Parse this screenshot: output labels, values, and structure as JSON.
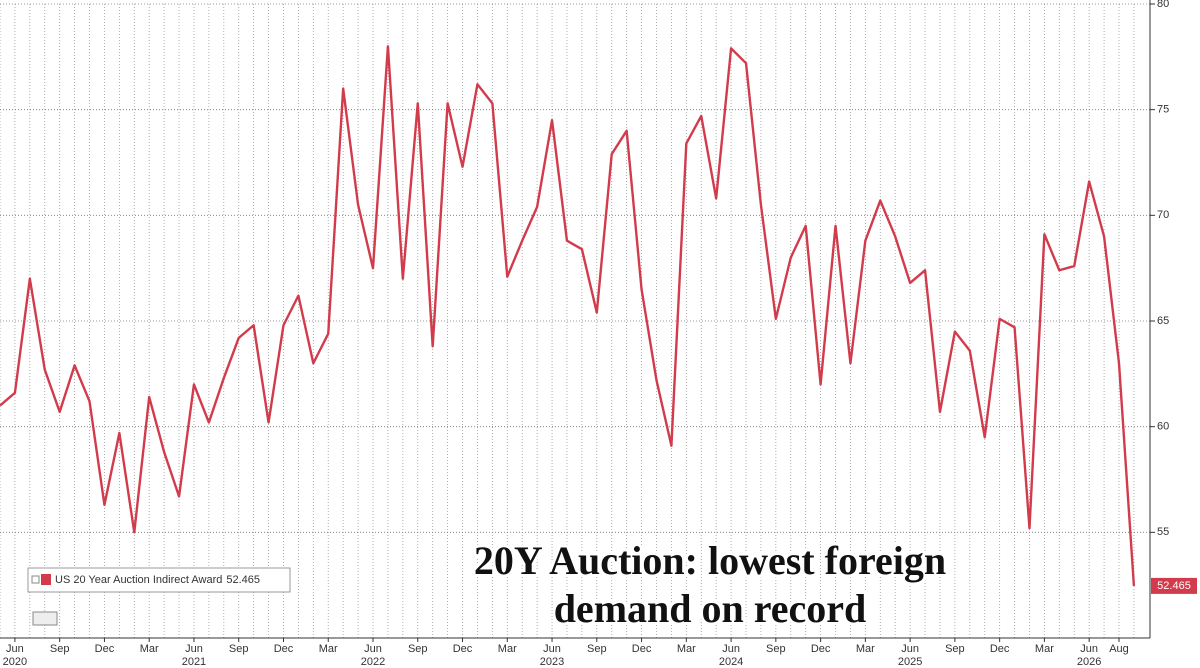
{
  "chart_data": {
    "type": "line",
    "annotation": [
      "20Y Auction: lowest foreign",
      "demand on record"
    ],
    "x": [
      "2020-05",
      "2020-06",
      "2020-07",
      "2020-08",
      "2020-09",
      "2020-10",
      "2020-11",
      "2020-12",
      "2021-01",
      "2021-02",
      "2021-03",
      "2021-04",
      "2021-05",
      "2021-06",
      "2021-07",
      "2021-08",
      "2021-09",
      "2021-10",
      "2021-11",
      "2021-12",
      "2022-01",
      "2022-02",
      "2022-03",
      "2022-04",
      "2022-05",
      "2022-06",
      "2022-07",
      "2022-08",
      "2022-09",
      "2022-10",
      "2022-11",
      "2022-12",
      "2023-01",
      "2023-02",
      "2023-03",
      "2023-04",
      "2023-05",
      "2023-06",
      "2023-07",
      "2023-08",
      "2023-09",
      "2023-10",
      "2023-11",
      "2023-12",
      "2024-01",
      "2024-02",
      "2024-03",
      "2024-04",
      "2024-05",
      "2024-06",
      "2024-07",
      "2024-08",
      "2024-09",
      "2024-10",
      "2024-11",
      "2024-12",
      "2025-01",
      "2025-02",
      "2025-03",
      "2025-04",
      "2025-05",
      "2025-06",
      "2025-07",
      "2025-08",
      "2025-09",
      "2025-10",
      "2025-11",
      "2025-12",
      "2026-01",
      "2026-02",
      "2026-03",
      "2026-04",
      "2026-05",
      "2026-06",
      "2026-07",
      "2026-08",
      "2026-09"
    ],
    "series": [
      {
        "name": "US 20 Year Auction Indirect Award",
        "color": "#d23b4b",
        "values": [
          61.0,
          61.6,
          67.0,
          62.7,
          60.7,
          62.9,
          61.2,
          56.3,
          59.7,
          55.0,
          61.4,
          58.8,
          56.7,
          62.0,
          60.2,
          62.3,
          64.2,
          64.8,
          60.2,
          64.8,
          66.2,
          63.0,
          64.4,
          76.0,
          70.5,
          67.5,
          78.0,
          67.0,
          75.3,
          63.8,
          75.3,
          72.3,
          76.2,
          75.3,
          67.1,
          68.8,
          70.4,
          74.5,
          68.8,
          68.4,
          65.4,
          72.9,
          74.0,
          66.5,
          62.2,
          59.1,
          73.4,
          74.7,
          70.8,
          77.9,
          77.2,
          70.5,
          65.1,
          68.0,
          69.5,
          62.0,
          69.5,
          63.0,
          68.8,
          70.7,
          69.0,
          66.8,
          67.4,
          60.7,
          64.5,
          63.6,
          59.5,
          65.1,
          64.7,
          55.2,
          69.1,
          67.4,
          67.6,
          71.6,
          69.0,
          63.0,
          52.465
        ]
      }
    ],
    "ylim": [
      50,
      80
    ],
    "yticks": [
      55,
      60,
      65,
      70,
      75,
      80
    ],
    "xticks": [
      {
        "value": "2020-06",
        "label": "Jun"
      },
      {
        "value": "2020-09",
        "label": "Sep"
      },
      {
        "value": "2020-12",
        "label": "Dec"
      },
      {
        "value": "2021-03",
        "label": "Mar"
      },
      {
        "value": "2021-06",
        "label": "Jun"
      },
      {
        "value": "2021-09",
        "label": "Sep"
      },
      {
        "value": "2021-12",
        "label": "Dec"
      },
      {
        "value": "2022-03",
        "label": "Mar"
      },
      {
        "value": "2022-06",
        "label": "Jun"
      },
      {
        "value": "2022-09",
        "label": "Sep"
      },
      {
        "value": "2022-12",
        "label": "Dec"
      },
      {
        "value": "2023-03",
        "label": "Mar"
      },
      {
        "value": "2023-06",
        "label": "Jun"
      },
      {
        "value": "2023-09",
        "label": "Sep"
      },
      {
        "value": "2023-12",
        "label": "Dec"
      },
      {
        "value": "2024-03",
        "label": "Mar"
      },
      {
        "value": "2024-06",
        "label": "Jun"
      },
      {
        "value": "2024-09",
        "label": "Sep"
      },
      {
        "value": "2024-12",
        "label": "Dec"
      },
      {
        "value": "2025-03",
        "label": "Mar"
      },
      {
        "value": "2025-06",
        "label": "Jun"
      },
      {
        "value": "2025-09",
        "label": "Sep"
      },
      {
        "value": "2025-12",
        "label": "Dec"
      },
      {
        "value": "2026-03",
        "label": "Mar"
      },
      {
        "value": "2026-06",
        "label": "Jun"
      },
      {
        "value": "2026-08",
        "label": "Aug"
      }
    ],
    "year_labels": [
      {
        "value": "2020-06",
        "label": "2020"
      },
      {
        "value": "2021-06",
        "label": "2021"
      },
      {
        "value": "2022-06",
        "label": "2022"
      },
      {
        "value": "2023-06",
        "label": "2023"
      },
      {
        "value": "2024-06",
        "label": "2024"
      },
      {
        "value": "2025-06",
        "label": "2025"
      },
      {
        "value": "2026-06",
        "label": "2026"
      }
    ],
    "grid": true,
    "legend": "lower-left"
  }
}
